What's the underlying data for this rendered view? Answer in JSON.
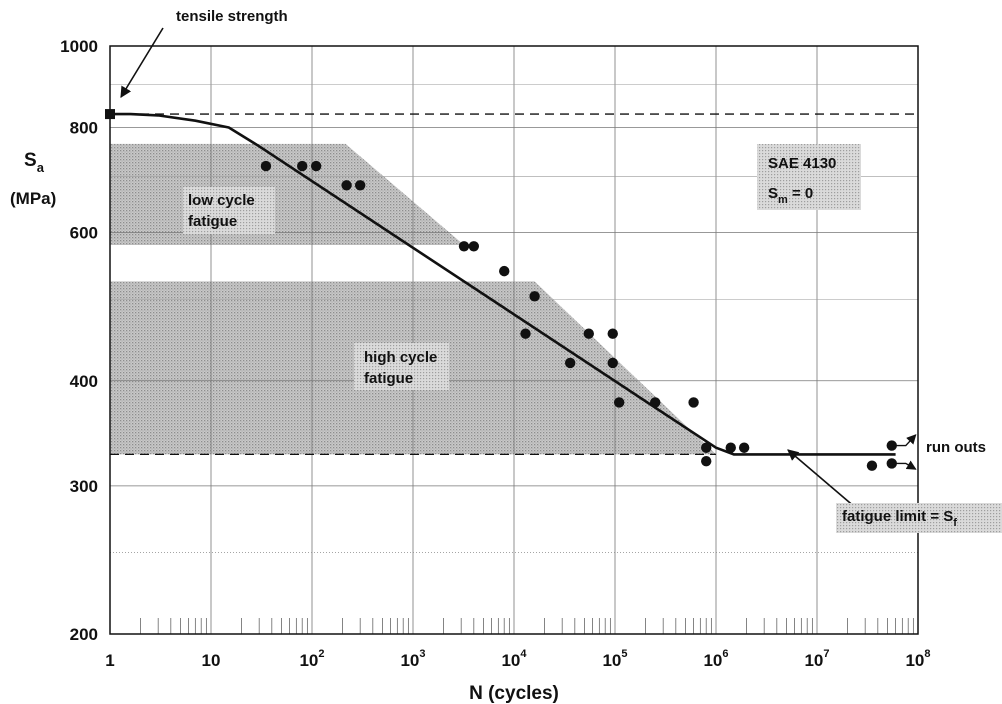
{
  "chart_data": {
    "type": "scatter",
    "x_scale": "log",
    "y_scale": "log",
    "xlim": [
      1,
      100000000
    ],
    "ylim": [
      200,
      1000
    ],
    "xlabel": "N (cycles)",
    "ylabel": {
      "symbol": "S",
      "subscript": "a",
      "unit": "(MPa)"
    },
    "x_ticks": [
      {
        "value": 1,
        "base": "1",
        "exp": ""
      },
      {
        "value": 10,
        "base": "10",
        "exp": ""
      },
      {
        "value": 100,
        "base": "10",
        "exp": "2"
      },
      {
        "value": 1000,
        "base": "10",
        "exp": "3"
      },
      {
        "value": 10000,
        "base": "10",
        "exp": "4"
      },
      {
        "value": 100000,
        "base": "10",
        "exp": "5"
      },
      {
        "value": 1000000,
        "base": "10",
        "exp": "6"
      },
      {
        "value": 10000000,
        "base": "10",
        "exp": "7"
      },
      {
        "value": 100000000,
        "base": "10",
        "exp": "8"
      }
    ],
    "y_ticks": [
      {
        "value": 1000,
        "label": "1000"
      },
      {
        "value": 800,
        "label": "800"
      },
      {
        "value": 600,
        "label": "600"
      },
      {
        "value": 400,
        "label": "400"
      },
      {
        "value": 300,
        "label": "300"
      },
      {
        "value": 200,
        "label": "200"
      }
    ],
    "y_minor_dotted": [
      250
    ],
    "grid": true,
    "curve": [
      [
        1,
        830
      ],
      [
        1.6,
        830
      ],
      [
        3,
        827
      ],
      [
        7,
        815
      ],
      [
        15,
        800
      ],
      [
        30,
        760
      ],
      [
        1000000,
        333
      ],
      [
        1500000,
        327
      ],
      [
        2000000,
        327
      ],
      [
        60000000,
        327
      ]
    ],
    "reference_lines": [
      {
        "name": "tensile strength",
        "y": 830
      },
      {
        "name": "fatigue limit",
        "y": 327
      }
    ],
    "tensile_strength_point": [
      1,
      830
    ],
    "points": [
      [
        35,
        720
      ],
      [
        80,
        720
      ],
      [
        110,
        720
      ],
      [
        220,
        683
      ],
      [
        300,
        683
      ],
      [
        3200,
        578
      ],
      [
        4000,
        578
      ],
      [
        8000,
        540
      ],
      [
        16000,
        504
      ],
      [
        13000,
        455
      ],
      [
        36000,
        420
      ],
      [
        55000,
        455
      ],
      [
        95000,
        455
      ],
      [
        95000,
        420
      ],
      [
        110000,
        377
      ],
      [
        250000,
        377
      ],
      [
        600000,
        377
      ],
      [
        800000,
        333
      ],
      [
        800000,
        321
      ],
      [
        1400000,
        333
      ],
      [
        1900000,
        333
      ],
      [
        35000000,
        317
      ],
      [
        55000000,
        335
      ],
      [
        55000000,
        319
      ]
    ],
    "runout_arrows": [
      {
        "from": [
          55000000,
          335
        ],
        "to": [
          95000000,
          345
        ]
      },
      {
        "from": [
          55000000,
          319
        ],
        "to": [
          95000000,
          314
        ]
      }
    ],
    "regions": [
      {
        "name": "low cycle fatigue",
        "y_range": [
          580,
          765
        ],
        "x_range": [
          1,
          3200
        ]
      },
      {
        "name": "high cycle fatigue",
        "y_range": [
          327,
          525
        ],
        "x_range": [
          1,
          1000000
        ]
      }
    ],
    "annotations": {
      "tensile_strength": "tensile strength",
      "low_cycle": [
        "low cycle",
        "fatigue"
      ],
      "high_cycle": [
        "high cycle",
        "fatigue"
      ],
      "material": "SAE 4130",
      "mean_stress": {
        "symbol": "S",
        "subscript": "m",
        "rest": " = 0"
      },
      "run_outs": "run outs",
      "fatigue_limit": {
        "text": "fatigue limit = S",
        "subscript": "f"
      }
    }
  }
}
